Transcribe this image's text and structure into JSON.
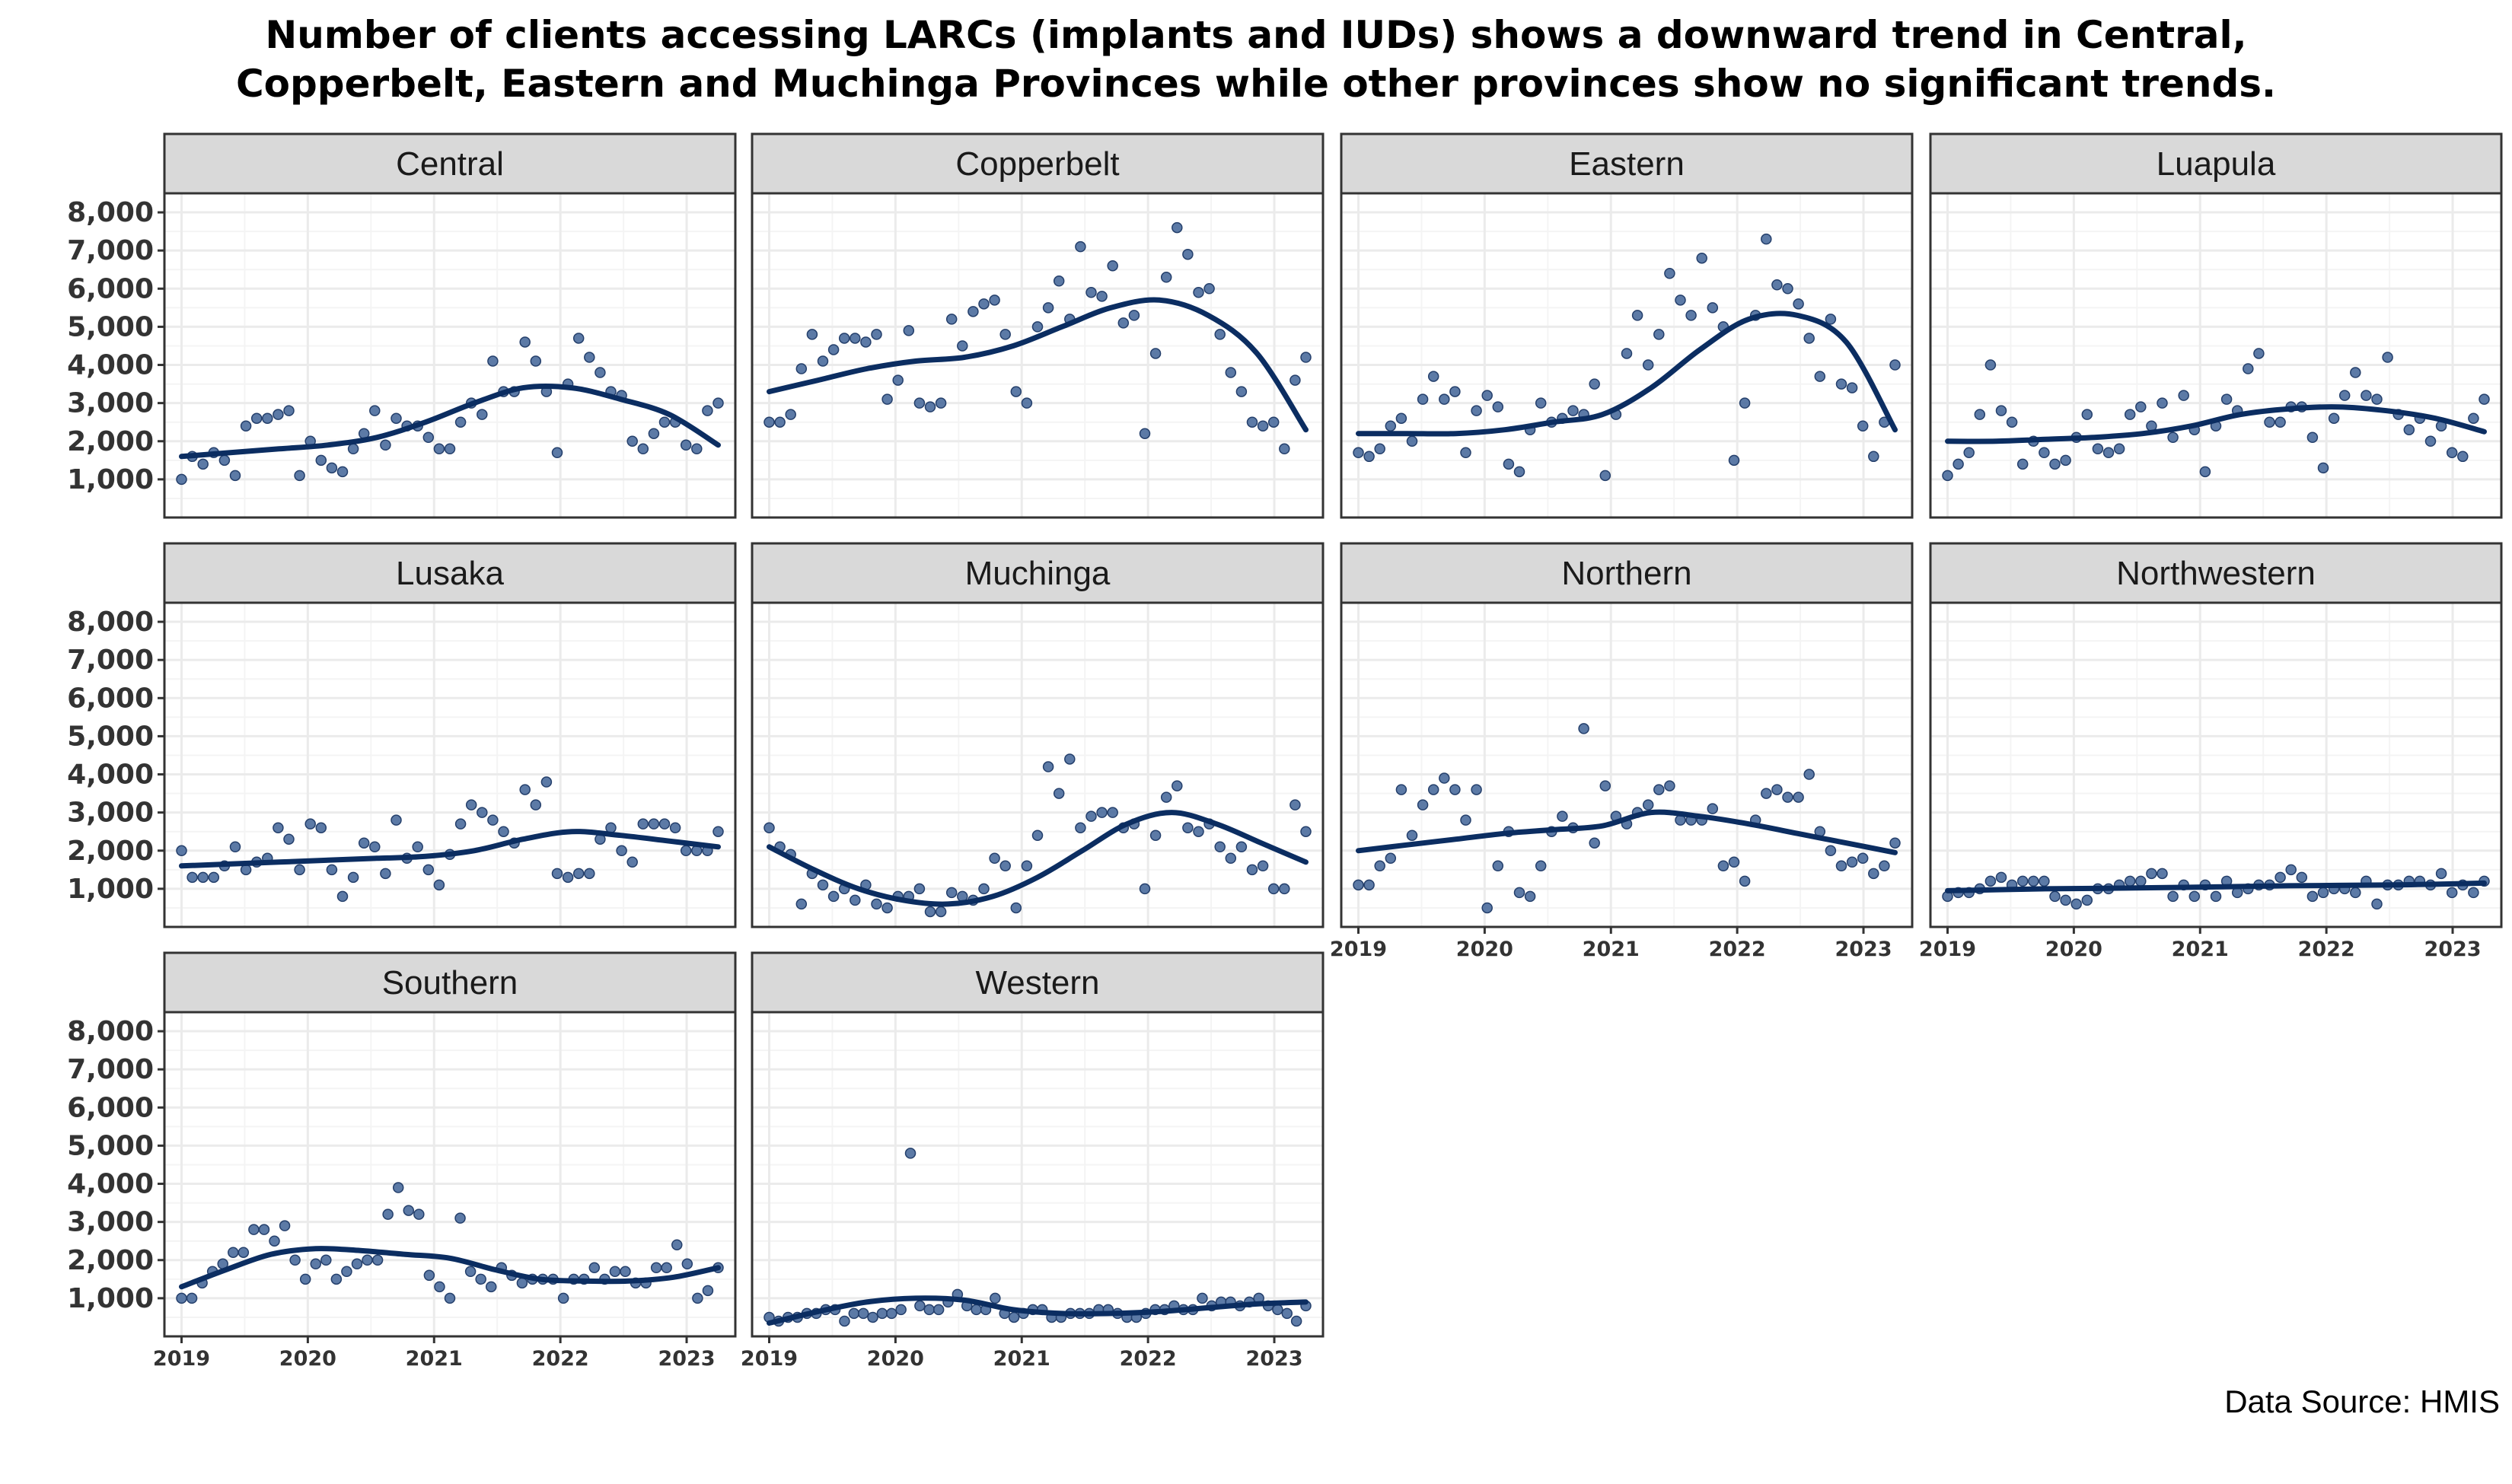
{
  "title": {
    "line1": "Number of clients accessing LARCs (implants and IUDs) shows a downward trend in Central,",
    "line2": "Copperbelt, Eastern and Muchinga Provinces while other provinces show no significant trends."
  },
  "source_note": "Data Source: HMIS",
  "colors": {
    "point_fill": "#4a6b9c",
    "point_edge": "#243f6b",
    "trend_line": "#0b2d61",
    "strip_fill": "#d9d9d9",
    "panel_border": "#333333",
    "grid_major": "#ebebeb",
    "grid_minor": "#f4f4f4"
  },
  "chart_data": {
    "type": "scatter",
    "layout": "facet_wrap",
    "facet_columns": 4,
    "x_axis": {
      "ticks": [
        "2019",
        "2020",
        "2021",
        "2022",
        "2023"
      ],
      "start": "2019-01",
      "end": "2023-03"
    },
    "y_axis": {
      "ticks": [
        "1,000",
        "2,000",
        "3,000",
        "4,000",
        "5,000",
        "6,000",
        "7,000",
        "8,000"
      ],
      "ylim": [
        0,
        8500
      ]
    },
    "grid": true,
    "smoothed_trend_line": true,
    "panels": [
      {
        "name": "Central",
        "values": [
          1000,
          1600,
          1400,
          1700,
          1500,
          1100,
          2400,
          2600,
          2600,
          2700,
          2800,
          1100,
          2000,
          1500,
          1300,
          1200,
          1800,
          2200,
          2800,
          1900,
          2600,
          2400,
          2400,
          2100,
          1800,
          1800,
          2500,
          3000,
          2700,
          4100,
          3300,
          3300,
          4600,
          4100,
          3300,
          1700,
          3500,
          4700,
          4200,
          3800,
          3300,
          3200,
          2000,
          1800,
          2200,
          2500,
          2500,
          1900,
          1800,
          2800,
          3000
        ],
        "trend": [
          1600,
          1700,
          1800,
          1900,
          2100,
          2500,
          3000,
          3400,
          3400,
          3100,
          2700,
          1900
        ]
      },
      {
        "name": "Copperbelt",
        "values": [
          2500,
          2500,
          2700,
          3900,
          4800,
          4100,
          4400,
          4700,
          4700,
          4600,
          4800,
          3100,
          3600,
          4900,
          3000,
          2900,
          3000,
          5200,
          4500,
          5400,
          5600,
          5700,
          4800,
          3300,
          3000,
          5000,
          5500,
          6200,
          5200,
          7100,
          5900,
          5800,
          6600,
          5100,
          5300,
          2200,
          4300,
          6300,
          7600,
          6900,
          5900,
          6000,
          4800,
          3800,
          3300,
          2500,
          2400,
          2500,
          1800,
          3600,
          4200
        ],
        "trend": [
          3300,
          3600,
          3900,
          4100,
          4200,
          4500,
          5000,
          5500,
          5700,
          5300,
          4300,
          2300
        ]
      },
      {
        "name": "Eastern",
        "values": [
          1700,
          1600,
          1800,
          2400,
          2600,
          2000,
          3100,
          3700,
          3100,
          3300,
          1700,
          2800,
          3200,
          2900,
          1400,
          1200,
          2300,
          3000,
          2500,
          2600,
          2800,
          2700,
          3500,
          1100,
          2700,
          4300,
          5300,
          4000,
          4800,
          6400,
          5700,
          5300,
          6800,
          5500,
          5000,
          1500,
          3000,
          5300,
          7300,
          6100,
          6000,
          5600,
          4700,
          3700,
          5200,
          3500,
          3400,
          2400,
          1600,
          2500,
          4000
        ],
        "trend": [
          2200,
          2200,
          2200,
          2300,
          2500,
          2700,
          3400,
          4400,
          5200,
          5300,
          4600,
          2300
        ]
      },
      {
        "name": "Luapula",
        "values": [
          1100,
          1400,
          1700,
          2700,
          4000,
          2800,
          2500,
          1400,
          2000,
          1700,
          1400,
          1500,
          2100,
          2700,
          1800,
          1700,
          1800,
          2700,
          2900,
          2400,
          3000,
          2100,
          3200,
          2300,
          1200,
          2400,
          3100,
          2800,
          3900,
          4300,
          2500,
          2500,
          2900,
          2900,
          2100,
          1300,
          2600,
          3200,
          3800,
          3200,
          3100,
          4200,
          2700,
          2300,
          2600,
          2000,
          2400,
          1700,
          1600,
          2600,
          3100
        ],
        "trend": [
          2000,
          2000,
          2050,
          2100,
          2200,
          2400,
          2700,
          2850,
          2900,
          2800,
          2600,
          2250
        ]
      },
      {
        "name": "Lusaka",
        "values": [
          2000,
          1300,
          1300,
          1300,
          1600,
          2100,
          1500,
          1700,
          1800,
          2600,
          2300,
          1500,
          2700,
          2600,
          1500,
          800,
          1300,
          2200,
          2100,
          1400,
          2800,
          1800,
          2100,
          1500,
          1100,
          1900,
          2700,
          3200,
          3000,
          2800,
          2500,
          2200,
          3600,
          3200,
          3800,
          1400,
          1300,
          1400,
          1400,
          2300,
          2600,
          2000,
          1700,
          2700,
          2700,
          2700,
          2600,
          2000,
          2000,
          2000,
          2500
        ],
        "trend": [
          1600,
          1650,
          1700,
          1750,
          1800,
          1850,
          2000,
          2300,
          2500,
          2400,
          2250,
          2100
        ]
      },
      {
        "name": "Muchinga",
        "values": [
          2600,
          2100,
          1900,
          600,
          1400,
          1100,
          800,
          1000,
          700,
          1100,
          600,
          500,
          800,
          800,
          1000,
          400,
          400,
          900,
          800,
          700,
          1000,
          1800,
          1600,
          500,
          1600,
          2400,
          4200,
          3500,
          4400,
          2600,
          2900,
          3000,
          3000,
          2600,
          2700,
          1000,
          2400,
          3400,
          3700,
          2600,
          2500,
          2700,
          2100,
          1800,
          2100,
          1500,
          1600,
          1000,
          1000,
          3200,
          2500
        ],
        "trend": [
          2100,
          1500,
          1000,
          700,
          600,
          800,
          1300,
          2000,
          2700,
          3000,
          2700,
          2200,
          1700
        ]
      },
      {
        "name": "Northern",
        "values": [
          1100,
          1100,
          1600,
          1800,
          3600,
          2400,
          3200,
          3600,
          3900,
          3600,
          2800,
          3600,
          500,
          1600,
          2500,
          900,
          800,
          1600,
          2500,
          2900,
          2600,
          5200,
          2200,
          3700,
          2900,
          2700,
          3000,
          3200,
          3600,
          3700,
          2800,
          2800,
          2800,
          3100,
          1600,
          1700,
          1200,
          2800,
          3500,
          3600,
          3400,
          3400,
          4000,
          2500,
          2000,
          1600,
          1700,
          1800,
          1400,
          1600,
          2200
        ],
        "trend": [
          2000,
          2150,
          2300,
          2450,
          2550,
          2650,
          3000,
          2900,
          2700,
          2450,
          2200,
          1950
        ]
      },
      {
        "name": "Northwestern",
        "values": [
          800,
          900,
          900,
          1000,
          1200,
          1300,
          1100,
          1200,
          1200,
          1200,
          800,
          700,
          600,
          700,
          1000,
          1000,
          1100,
          1200,
          1200,
          1400,
          1400,
          800,
          1100,
          800,
          1100,
          800,
          1200,
          900,
          1000,
          1100,
          1100,
          1300,
          1500,
          1300,
          800,
          900,
          1000,
          1000,
          900,
          1200,
          600,
          1100,
          1100,
          1200,
          1200,
          1100,
          1400,
          900,
          1100,
          900,
          1200
        ],
        "trend": [
          950,
          975,
          1000,
          1010,
          1025,
          1040,
          1060,
          1080,
          1090,
          1100,
          1120,
          1150
        ]
      },
      {
        "name": "Southern",
        "values": [
          1000,
          1000,
          1400,
          1700,
          1900,
          2200,
          2200,
          2800,
          2800,
          2500,
          2900,
          2000,
          1500,
          1900,
          2000,
          1500,
          1700,
          1900,
          2000,
          2000,
          3200,
          3900,
          3300,
          3200,
          1600,
          1300,
          1000,
          3100,
          1700,
          1500,
          1300,
          1800,
          1600,
          1400,
          1500,
          1500,
          1500,
          1000,
          1500,
          1500,
          1800,
          1500,
          1700,
          1700,
          1400,
          1400,
          1800,
          1800,
          2400,
          1900,
          1000,
          1200,
          1800
        ],
        "trend": [
          1300,
          1750,
          2150,
          2300,
          2250,
          2150,
          2050,
          1750,
          1500,
          1450,
          1450,
          1550,
          1800
        ]
      },
      {
        "name": "Western",
        "values": [
          500,
          400,
          500,
          500,
          600,
          600,
          700,
          700,
          400,
          600,
          600,
          500,
          600,
          600,
          700,
          4800,
          800,
          700,
          700,
          900,
          1100,
          800,
          700,
          700,
          1000,
          600,
          500,
          600,
          700,
          700,
          500,
          500,
          600,
          600,
          600,
          700,
          700,
          600,
          500,
          500,
          600,
          700,
          700,
          800,
          700,
          700,
          1000,
          800,
          900,
          900,
          800,
          900,
          1000,
          800,
          700,
          600,
          400,
          800
        ],
        "trend": [
          350,
          650,
          900,
          1000,
          950,
          700,
          600,
          600,
          650,
          750,
          850,
          900
        ]
      }
    ]
  }
}
